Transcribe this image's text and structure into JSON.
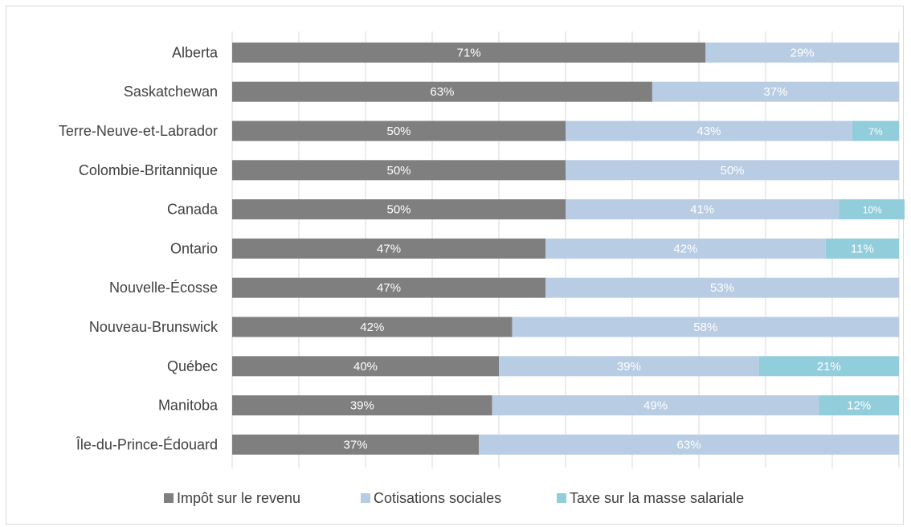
{
  "chart_data": {
    "type": "bar",
    "orientation": "horizontal",
    "stacked": true,
    "percent_stacked": true,
    "title": "",
    "xlabel": "",
    "ylabel": "",
    "xlim": [
      0,
      100
    ],
    "grid": true,
    "legend_position": "bottom",
    "categories": [
      "Alberta",
      "Saskatchewan",
      "Terre-Neuve-et-Labrador",
      "Colombie-Britannique",
      "Canada",
      "Ontario",
      "Nouvelle-Écosse",
      "Nouveau-Brunswick",
      "Québec",
      "Manitoba",
      "Île-du-Prince-Édouard"
    ],
    "series": [
      {
        "name": "Impôt sur le revenu",
        "color": "#7f7f7f",
        "values": [
          71,
          63,
          50,
          50,
          50,
          47,
          47,
          42,
          40,
          39,
          37
        ],
        "labels": [
          "71%",
          "63%",
          "50%",
          "50%",
          "50%",
          "47%",
          "47%",
          "42%",
          "40%",
          "39%",
          "37%"
        ]
      },
      {
        "name": "Cotisations sociales",
        "color": "#b8cce4",
        "values": [
          29,
          37,
          43,
          50,
          41,
          42,
          53,
          58,
          39,
          49,
          63
        ],
        "labels": [
          "29%",
          "37%",
          "43%",
          "50%",
          "41%",
          "42%",
          "53%",
          "58%",
          "39%",
          "49%",
          "63%"
        ]
      },
      {
        "name": "Taxe sur la masse salariale",
        "color": "#92cddc",
        "values": [
          0,
          0,
          7,
          0,
          10,
          11,
          0,
          0,
          21,
          12,
          0
        ],
        "labels": [
          "",
          "",
          "7%",
          "",
          "10%",
          "11%",
          "",
          "",
          "21%",
          "12%",
          ""
        ]
      }
    ]
  }
}
